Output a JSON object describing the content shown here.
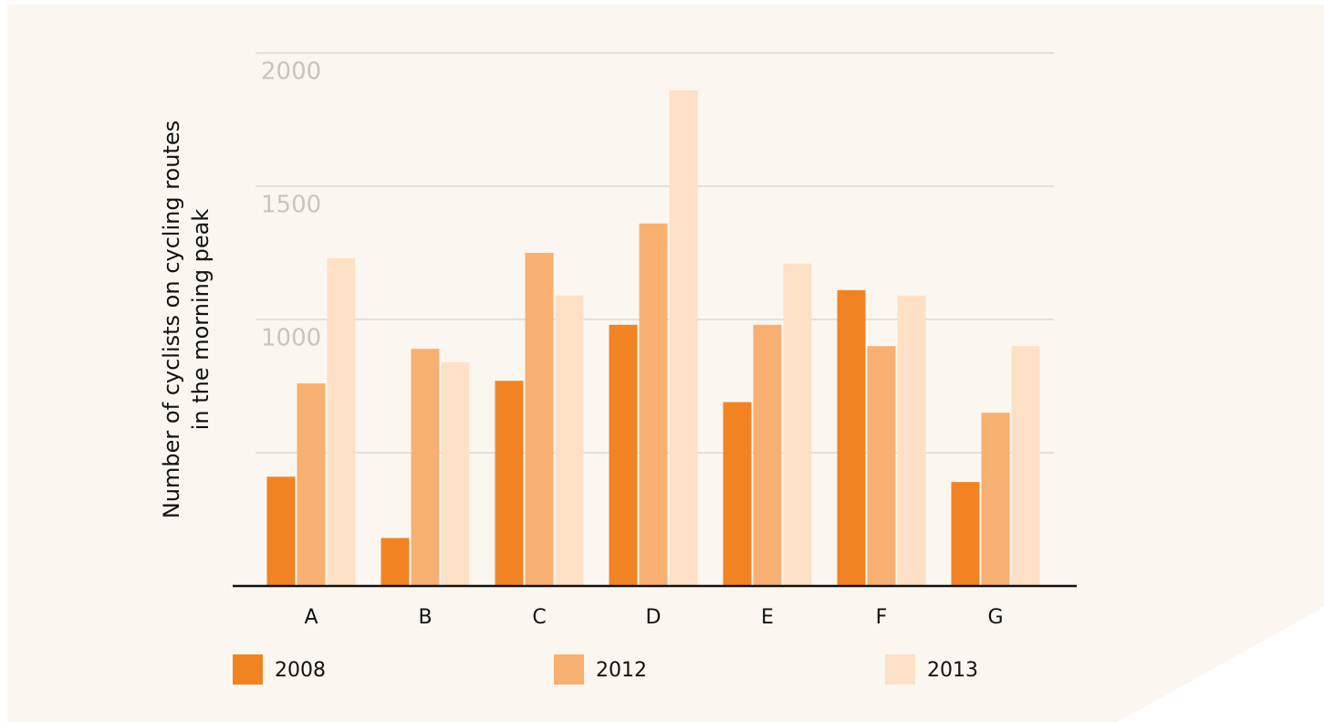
{
  "chart_data": {
    "type": "bar",
    "ylabel": [
      "Number of cyclists on cycling routes",
      "in the morning peak"
    ],
    "categories": [
      "A",
      "B",
      "C",
      "D",
      "E",
      "F",
      "G"
    ],
    "series": [
      {
        "name": "2008",
        "color": "#f28322",
        "values": [
          410,
          180,
          770,
          980,
          690,
          1110,
          390
        ]
      },
      {
        "name": "2012",
        "color": "#f8af72",
        "values": [
          760,
          890,
          1250,
          1360,
          980,
          900,
          650
        ]
      },
      {
        "name": "2013",
        "color": "#fde0c5",
        "values": [
          1230,
          840,
          1090,
          1860,
          1210,
          1090,
          900
        ]
      }
    ],
    "ylim": [
      0,
      2000
    ],
    "yticks": [
      1000,
      1500,
      2000
    ],
    "ygrid": [
      500,
      1000,
      1500,
      2000
    ]
  }
}
